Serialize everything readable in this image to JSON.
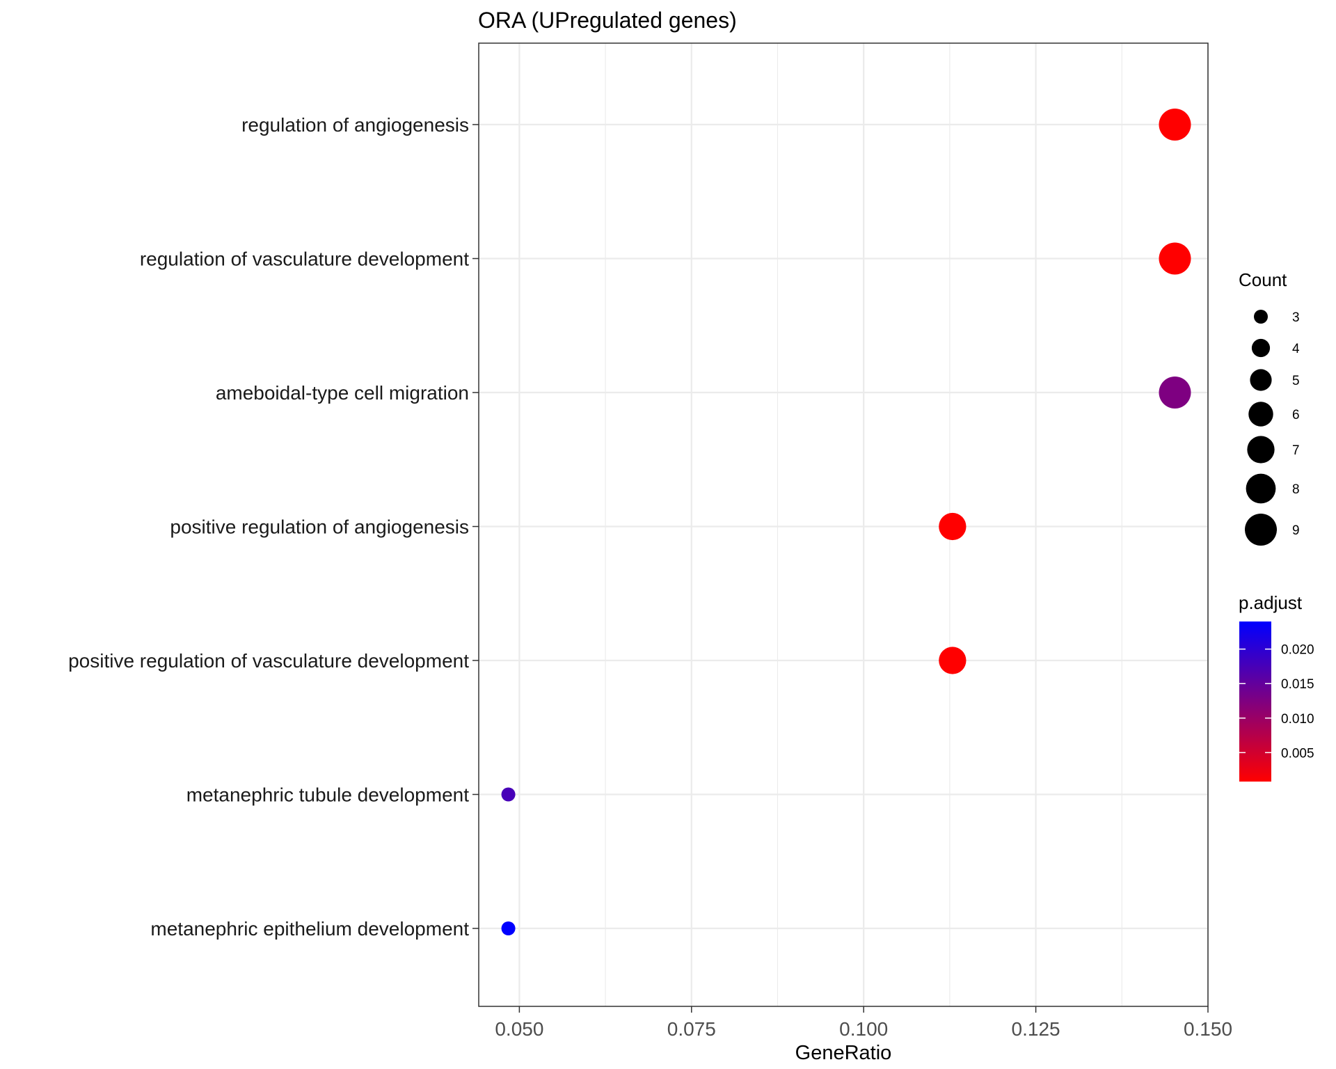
{
  "chart_data": {
    "type": "scatter",
    "title": "ORA (UPregulated genes)",
    "xlabel": "GeneRatio",
    "ylabel": "",
    "xlim": [
      0.0441,
      0.15
    ],
    "xticks": [
      0.05,
      0.075,
      0.1,
      0.125,
      0.15
    ],
    "xtick_labels": [
      "0.050",
      "0.075",
      "0.100",
      "0.125",
      "0.150"
    ],
    "grid": true,
    "categories": [
      "regulation of angiogenesis",
      "regulation of vasculature development",
      "ameboidal-type cell migration",
      "positive regulation of angiogenesis",
      "positive regulation of vasculature development",
      "metanephric tubule development",
      "metanephric epithelium development"
    ],
    "points": [
      {
        "term": "regulation of angiogenesis",
        "gene_ratio": 0.1452,
        "count": 9,
        "p_adjust": 0.0008
      },
      {
        "term": "regulation of vasculature development",
        "gene_ratio": 0.1452,
        "count": 9,
        "p_adjust": 0.0008
      },
      {
        "term": "ameboidal-type cell migration",
        "gene_ratio": 0.1452,
        "count": 9,
        "p_adjust": 0.0125
      },
      {
        "term": "positive regulation of angiogenesis",
        "gene_ratio": 0.1129,
        "count": 7,
        "p_adjust": 0.0008
      },
      {
        "term": "positive regulation of vasculature development",
        "gene_ratio": 0.1129,
        "count": 7,
        "p_adjust": 0.0008
      },
      {
        "term": "metanephric tubule development",
        "gene_ratio": 0.0484,
        "count": 3,
        "p_adjust": 0.0175
      },
      {
        "term": "metanephric epithelium development",
        "gene_ratio": 0.0484,
        "count": 3,
        "p_adjust": 0.024
      }
    ],
    "size_legend": {
      "title": "Count",
      "values": [
        3,
        4,
        5,
        6,
        7,
        8,
        9
      ],
      "labels": [
        "3",
        "4",
        "5",
        "6",
        "7",
        "8",
        "9"
      ]
    },
    "color_legend": {
      "title": "p.adjust",
      "range": [
        0.0008,
        0.024
      ],
      "ticks": [
        0.02,
        0.015,
        0.01,
        0.005
      ],
      "tick_labels": [
        "0.020",
        "0.015",
        "0.010",
        "0.005"
      ],
      "low_color": "#FF0000",
      "high_color": "#0000FF"
    },
    "legend_position": "right"
  }
}
